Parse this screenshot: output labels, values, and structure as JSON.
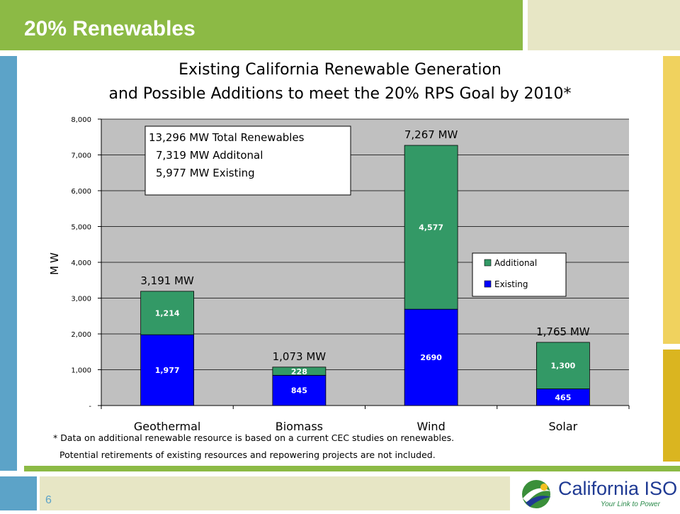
{
  "slide": {
    "title": "20% Renewables",
    "page_number": "6"
  },
  "colors": {
    "header_green": "#8cba45",
    "header_cream": "#e7e6c5",
    "left_bar_blue": "#5ca3c8",
    "right_bar_yellow": "#f0d25e",
    "right_bar_gold": "#dab520",
    "footer_cream": "#e7e6c5",
    "existing": "#0000ff",
    "additional": "#339966",
    "plot_bg": "#c0c0c0"
  },
  "chart_data": {
    "type": "bar",
    "stacked": true,
    "title_line1": "Existing California Renewable Generation",
    "title_line2": "and Possible Additions to meet the 20% RPS Goal by 2010*",
    "ylabel": "MW",
    "xlabel": "",
    "ylim": [
      0,
      8000
    ],
    "yticks": [
      0,
      1000,
      2000,
      3000,
      4000,
      5000,
      6000,
      7000,
      8000
    ],
    "ytick_labels": [
      "-",
      "1,000",
      "2,000",
      "3,000",
      "4,000",
      "5,000",
      "6,000",
      "7,000",
      "8,000"
    ],
    "grid": true,
    "categories": [
      "Geothermal",
      "Biomass",
      "Wind",
      "Solar"
    ],
    "series": [
      {
        "name": "Existing",
        "values": [
          1977,
          845,
          2690,
          465
        ],
        "labels": [
          "1,977",
          "845",
          "2690",
          "465"
        ]
      },
      {
        "name": "Additional",
        "values": [
          1214,
          228,
          4577,
          1300
        ],
        "labels": [
          "1,214",
          "228",
          "4,577",
          "1,300"
        ]
      }
    ],
    "total_labels": [
      "3,191 MW",
      "1,073 MW",
      "7,267 MW",
      "1,765 MW"
    ],
    "legend": {
      "placement": "right",
      "entries": [
        "Additional",
        "Existing"
      ]
    },
    "summary_box": {
      "lines": [
        "13,296 MW  Total Renewables",
        "7,319 MW  Additonal",
        "5,977 MW  Existing"
      ]
    }
  },
  "footnotes": {
    "line1": "* Data on additional renewable resource is based on a current CEC studies on renewables.",
    "line2": "Potential retirements of existing resources and repowering projects are not included."
  },
  "logo": {
    "name": "California ISO",
    "tagline": "Your Link to Power"
  }
}
